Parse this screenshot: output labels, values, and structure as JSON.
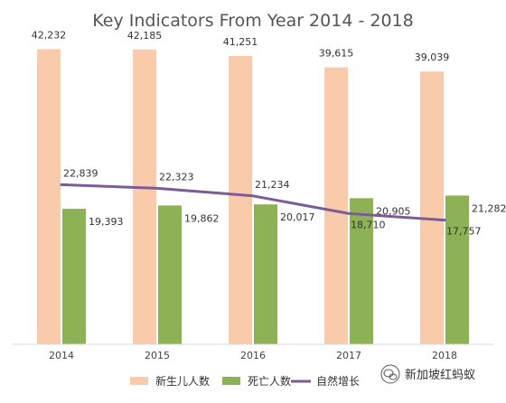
{
  "chart_data": {
    "type": "bar",
    "title": "Key Indicators From Year 2014 - 2018",
    "xlabel": "",
    "ylabel": "",
    "categories": [
      "2014",
      "2015",
      "2016",
      "2017",
      "2018"
    ],
    "ylim": [
      0,
      45000
    ],
    "grid": false,
    "legend_position": "bottom",
    "series": [
      {
        "name": "新生儿人数",
        "kind": "bar",
        "color": "#F9CBAA",
        "values": [
          42232,
          42185,
          41251,
          39615,
          39039
        ],
        "labels": [
          "42,232",
          "42,185",
          "41,251",
          "39,615",
          "39,039"
        ]
      },
      {
        "name": "死亡人数",
        "kind": "bar",
        "color": "#8DB255",
        "values": [
          19393,
          19862,
          20017,
          20905,
          21282
        ],
        "labels": [
          "19,393",
          "19,862",
          "20,017",
          "20,905",
          "21,282"
        ]
      },
      {
        "name": "自然增长",
        "kind": "line",
        "color": "#7B5C96",
        "values": [
          22839,
          22323,
          21234,
          18710,
          17757
        ],
        "labels": [
          "22,839",
          "22,323",
          "21,234",
          "18,710",
          "17,757"
        ]
      }
    ]
  },
  "watermark": {
    "text": "新加坡红蚂蚁",
    "icon": "wechat-icon"
  }
}
